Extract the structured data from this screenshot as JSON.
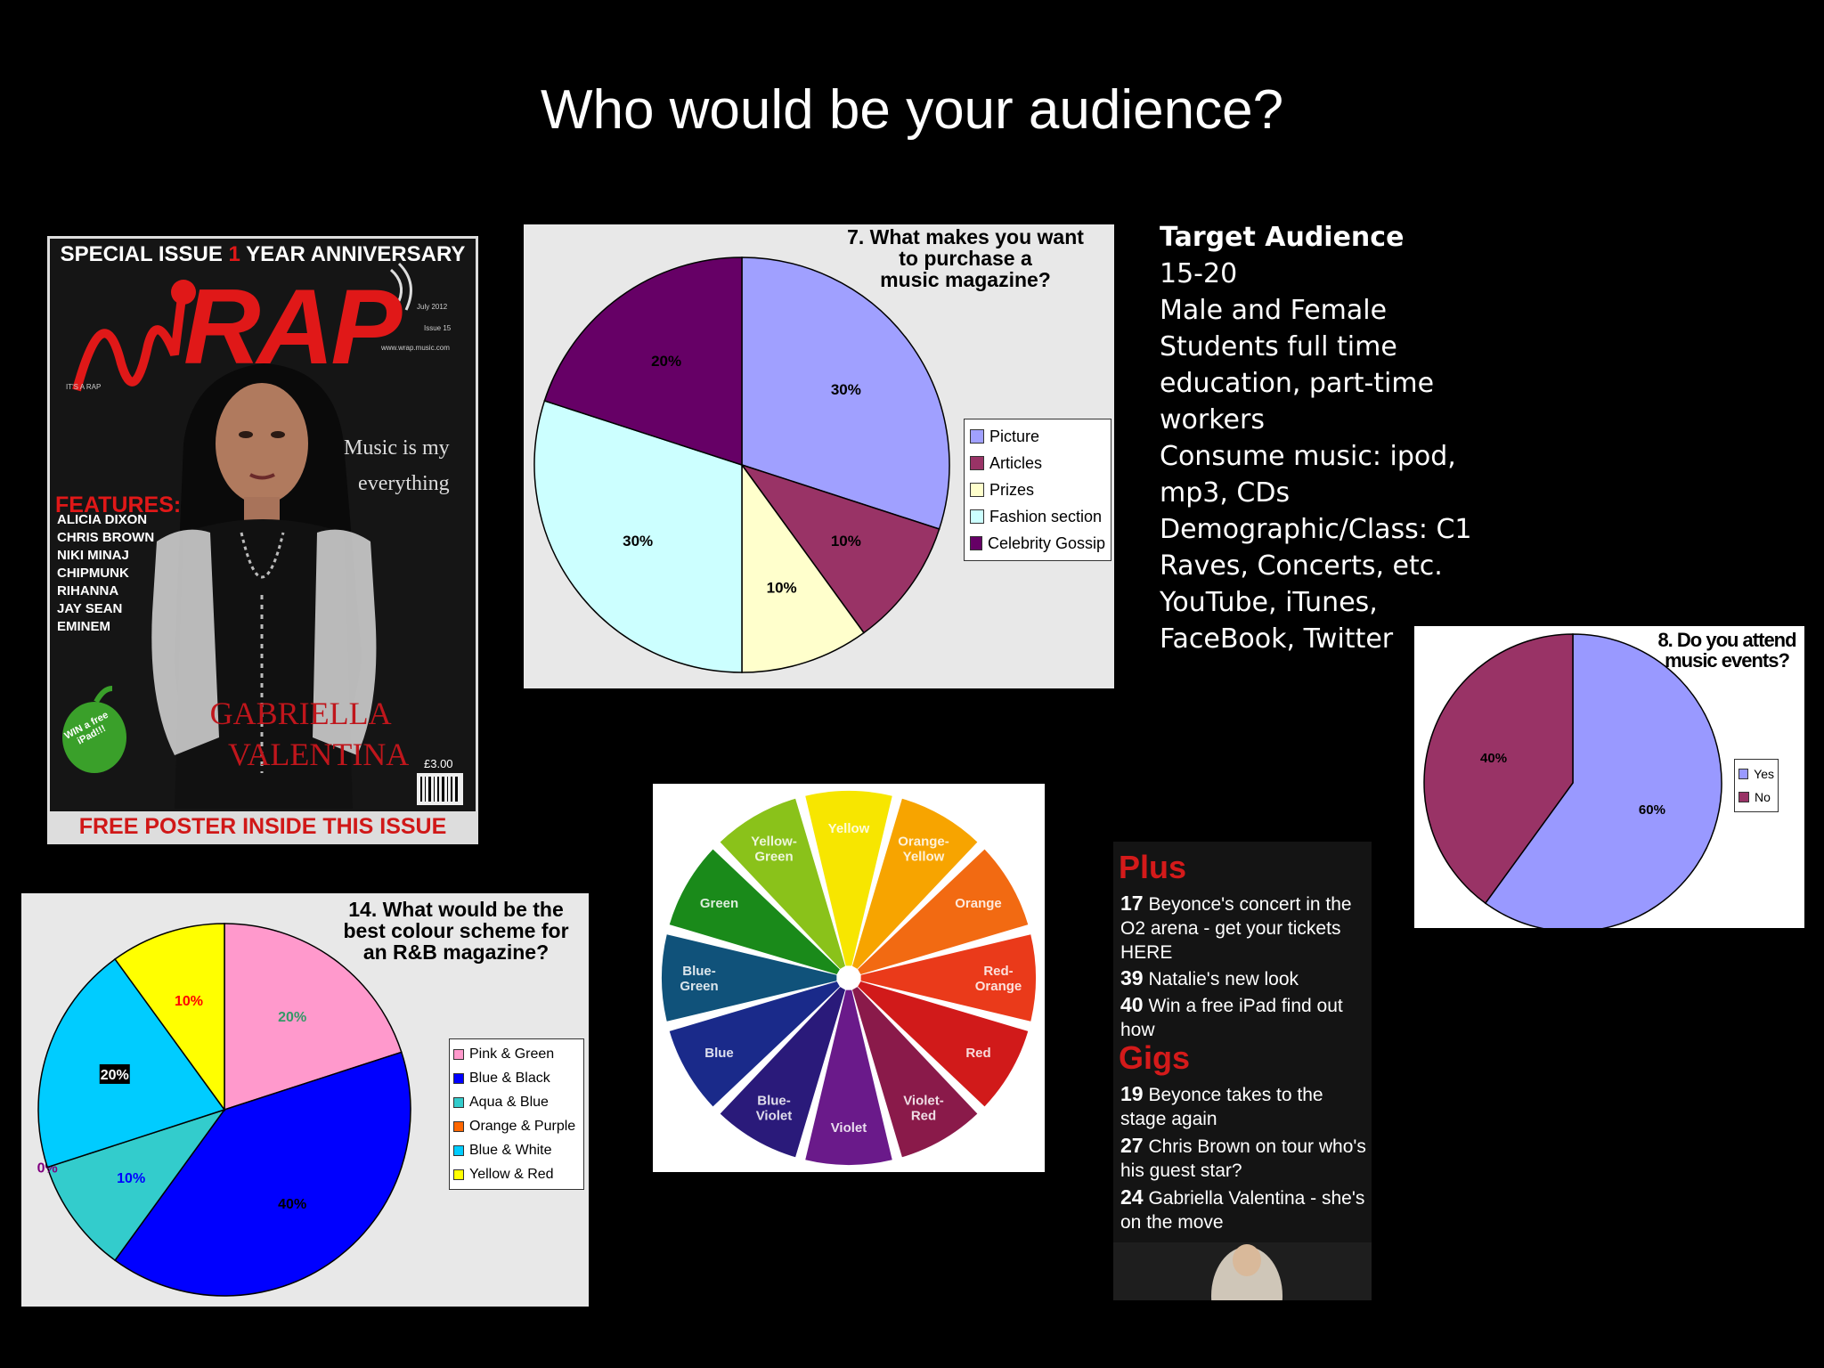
{
  "slide": {
    "title": "Who would be your audience?"
  },
  "target_audience": {
    "heading": "Target Audience",
    "lines": [
      "15-20",
      "Male and Female",
      "Students full time",
      "education, part-time",
      "workers",
      "Consume music: ipod,",
      "mp3, CDs",
      "Demographic/Class: C1",
      "Raves, Concerts, etc.",
      "YouTube, iTunes,",
      "FaceBook, Twitter"
    ]
  },
  "magazine_cover": {
    "banner_left": "SPECIAL ISSUE",
    "banner_num": "1",
    "banner_right": "YEAR ANNIVERSARY",
    "logo": "RAP",
    "tagline": "IT'S A RAP",
    "date": "July 2012",
    "issue": "Issue 15",
    "website": "www.wrap.music.com",
    "slogan_1": "Music is my",
    "slogan_2": "everything",
    "features_heading": "FEATURES:",
    "features": [
      "ALICIA DIXON",
      "CHRIS BROWN",
      "NIKI MINAJ",
      "CHIPMUNK",
      "RIHANNA",
      "JAY SEAN",
      "EMINEM"
    ],
    "name_1": "GABRIELLA",
    "name_2": "VALENTINA",
    "price": "£3.00",
    "win": "WIN a free iPad!!!",
    "bottom": "FREE POSTER INSIDE THIS ISSUE"
  },
  "contents": {
    "plus": "Plus",
    "gigs": "Gigs",
    "plus_items": [
      {
        "num": "17",
        "text": "Beyonce's concert in the O2 arena - get your tickets HERE"
      },
      {
        "num": "39",
        "text": "Natalie's new look"
      },
      {
        "num": "40",
        "text": "Win a free iPad find out how"
      }
    ],
    "gig_items": [
      {
        "num": "19",
        "text": "Beyonce takes to the stage again"
      },
      {
        "num": "27",
        "text": "Chris Brown on tour who's his guest star?"
      },
      {
        "num": "24",
        "text": "Gabriella Valentina - she's on the move"
      }
    ]
  },
  "color_wheel": {
    "segments": [
      {
        "label": "Yellow",
        "color": "#f7e600"
      },
      {
        "label": "Orange-Yellow",
        "color": "#f7a400"
      },
      {
        "label": "Orange",
        "color": "#f26a12"
      },
      {
        "label": "Red-Orange",
        "color": "#ea3a1a"
      },
      {
        "label": "Red",
        "color": "#d11a1a"
      },
      {
        "label": "Violet-Red",
        "color": "#8a1a4a"
      },
      {
        "label": "Violet",
        "color": "#6a1a8a"
      },
      {
        "label": "Blue-Violet",
        "color": "#2a1a7a"
      },
      {
        "label": "Blue",
        "color": "#1a2a8a"
      },
      {
        "label": "Blue-Green",
        "color": "#10527a"
      },
      {
        "label": "Green",
        "color": "#1a8a1a"
      },
      {
        "label": "Yellow-Green",
        "color": "#8ac21a"
      }
    ]
  },
  "chart_data": [
    {
      "type": "pie",
      "title": "7. What makes you want to purchase a music magazine?",
      "title_lines": [
        "7. What makes you want",
        "to purchase a",
        "music magazine?"
      ],
      "legend": "right",
      "series": [
        {
          "name": "Picture",
          "value": 30,
          "label": "30%",
          "color": "#a0a0ff"
        },
        {
          "name": "Articles",
          "value": 10,
          "label": "10%",
          "color": "#993366"
        },
        {
          "name": "Prizes",
          "value": 10,
          "label": "10%",
          "color": "#ffffcc"
        },
        {
          "name": "Fashion section",
          "value": 30,
          "label": "30%",
          "color": "#ccffff"
        },
        {
          "name": "Celebrity Gossip",
          "value": 20,
          "label": "20%",
          "color": "#660066"
        }
      ]
    },
    {
      "type": "pie",
      "title": "8. Do you attend music events?",
      "title_lines": [
        "8. Do you attend",
        "music events?"
      ],
      "legend": "right",
      "series": [
        {
          "name": "Yes",
          "value": 60,
          "label": "60%",
          "color": "#9999ff"
        },
        {
          "name": "No",
          "value": 40,
          "label": "40%",
          "color": "#993366"
        }
      ]
    },
    {
      "type": "pie",
      "title": "14. What would be the best colour scheme for an R&B magazine?",
      "title_lines": [
        "14. What would be the",
        "best colour scheme for",
        "an R&B magazine?"
      ],
      "legend": "right",
      "series": [
        {
          "name": "Pink & Green",
          "value": 20,
          "label": "20%",
          "color": "#ff99cc",
          "label_color": "#339966"
        },
        {
          "name": "Blue & Black",
          "value": 40,
          "label": "40%",
          "color": "#0000ff",
          "label_color": "#000000"
        },
        {
          "name": "Aqua & Blue",
          "value": 10,
          "label": "10%",
          "color": "#33cccc",
          "label_color": "#0000ff"
        },
        {
          "name": "Orange & Purple",
          "value": 0,
          "label": "0%",
          "color": "#ff6600",
          "label_color": "#800080"
        },
        {
          "name": "Blue & White",
          "value": 20,
          "label": "20%",
          "color": "#00ccff",
          "label_color": "#ffffff",
          "label_bg": "#000000"
        },
        {
          "name": "Yellow & Red",
          "value": 10,
          "label": "10%",
          "color": "#ffff00",
          "label_color": "#ff0000"
        }
      ]
    }
  ]
}
